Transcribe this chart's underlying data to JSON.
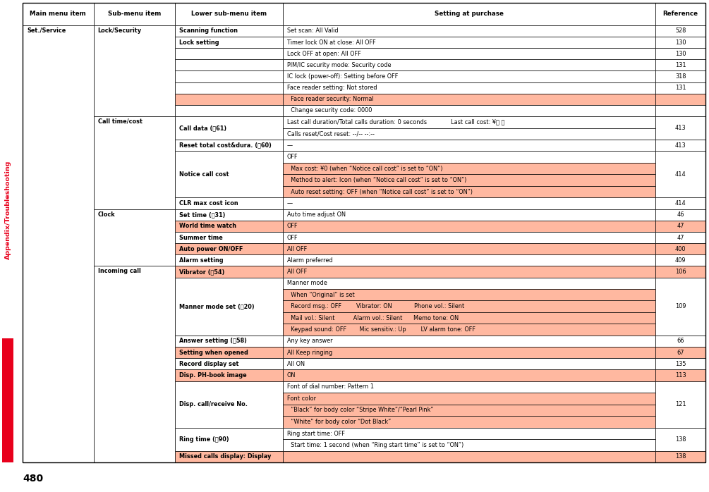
{
  "title_page": "480",
  "sidebar_text": "Appendix/Troubleshooting",
  "sidebar_color": "#e8001c",
  "col_headers": [
    "Main menu item",
    "Sub-menu item",
    "Lower sub-menu item",
    "Setting at purchase",
    "Reference"
  ],
  "pink_color": "#ffb8a0",
  "rows": [
    {
      "main": "Set./Service",
      "sub": "Lock/Security",
      "lower": "Scanning function",
      "setting": "Set scan: All Valid",
      "ref": "528",
      "bg": "white",
      "bl": true,
      "lines": 1
    },
    {
      "main": "",
      "sub": "",
      "lower": "Lock setting",
      "setting": "Timer lock ON at close: All OFF",
      "ref": "130",
      "bg": "white",
      "bl": true,
      "lines": 1
    },
    {
      "main": "",
      "sub": "",
      "lower": "",
      "setting": "Lock OFF at open: All OFF",
      "ref": "130",
      "bg": "white",
      "bl": false,
      "lines": 1
    },
    {
      "main": "",
      "sub": "",
      "lower": "",
      "setting": "PIM/IC security mode: Security code",
      "ref": "131",
      "bg": "white",
      "bl": false,
      "lines": 1
    },
    {
      "main": "",
      "sub": "",
      "lower": "",
      "setting": "IC lock (power-off): Setting before OFF",
      "ref": "318",
      "bg": "white",
      "bl": false,
      "lines": 1
    },
    {
      "main": "",
      "sub": "",
      "lower": "",
      "setting": "Face reader setting: Not stored",
      "ref": "131",
      "bg": "white",
      "bl": false,
      "lines": 1
    },
    {
      "main": "",
      "sub": "",
      "lower": "",
      "setting": "  Face reader security: Normal",
      "ref": "",
      "bg": "pink",
      "bl": false,
      "lines": 1
    },
    {
      "main": "",
      "sub": "",
      "lower": "",
      "setting": "  Change security code: 0000",
      "ref": "",
      "bg": "white",
      "bl": false,
      "lines": 1
    },
    {
      "main": "",
      "sub": "Call time/cost",
      "lower": "Call data (Ⓐ61)",
      "setting": "Last call duration/Total calls duration: 0 seconds             Last call cost: ¥＊ ＊\nCalls reset/Cost reset: --/-- --:--",
      "ref": "413",
      "bg": "white",
      "bl": true,
      "lines": 2
    },
    {
      "main": "",
      "sub": "",
      "lower": "Reset total cost&dura. (Ⓐ60)",
      "setting": "—",
      "ref": "413",
      "bg": "white",
      "bl": true,
      "lines": 1
    },
    {
      "main": "",
      "sub": "",
      "lower": "Notice call cost",
      "setting": "OFF\n  Max cost: ¥0 (when “Notice call cost” is set to “ON”)\n  Method to alert: Icon (when “Notice call cost” is set to “ON”)\n  Auto reset setting: OFF (when “Notice call cost” is set to “ON”)",
      "ref": "414",
      "bg": "white",
      "bl": true,
      "lines": 4,
      "sub_lines_pink": true
    },
    {
      "main": "",
      "sub": "",
      "lower": "CLR max cost icon",
      "setting": "—",
      "ref": "414",
      "bg": "white",
      "bl": true,
      "lines": 1
    },
    {
      "main": "",
      "sub": "Clock",
      "lower": "Set time (Ⓐ31)",
      "setting": "Auto time adjust ON",
      "ref": "46",
      "bg": "white",
      "bl": true,
      "lines": 1
    },
    {
      "main": "",
      "sub": "",
      "lower": "World time watch",
      "setting": "OFF",
      "ref": "47",
      "bg": "pink",
      "bl": true,
      "lines": 1
    },
    {
      "main": "",
      "sub": "",
      "lower": "Summer time",
      "setting": "OFF",
      "ref": "47",
      "bg": "white",
      "bl": true,
      "lines": 1
    },
    {
      "main": "",
      "sub": "",
      "lower": "Auto power ON/OFF",
      "setting": "All OFF",
      "ref": "400",
      "bg": "pink",
      "bl": true,
      "lines": 1
    },
    {
      "main": "",
      "sub": "",
      "lower": "Alarm setting",
      "setting": "Alarm preferred",
      "ref": "409",
      "bg": "white",
      "bl": true,
      "lines": 1
    },
    {
      "main": "",
      "sub": "Incoming call",
      "lower": "Vibrator (Ⓐ54)",
      "setting": "All OFF",
      "ref": "106",
      "bg": "pink",
      "bl": true,
      "lines": 1
    },
    {
      "main": "",
      "sub": "",
      "lower": "Manner mode set (Ⓐ20)",
      "setting": "Manner mode\n  When “Original” is set\n  Record msg.: OFF        Vibrator: ON            Phone vol.: Silent\n  Mail vol.: Silent          Alarm vol.: Silent      Memo tone: ON\n  Keypad sound: OFF       Mic sensitiv.: Up        LV alarm tone: OFF",
      "ref": "109",
      "bg": "white",
      "bl": true,
      "lines": 5,
      "sub_lines_pink": true
    },
    {
      "main": "",
      "sub": "",
      "lower": "Answer setting (Ⓐ58)",
      "setting": "Any key answer",
      "ref": "66",
      "bg": "white",
      "bl": true,
      "lines": 1
    },
    {
      "main": "",
      "sub": "",
      "lower": "Setting when opened",
      "setting": "All Keep ringing",
      "ref": "67",
      "bg": "pink",
      "bl": true,
      "lines": 1
    },
    {
      "main": "",
      "sub": "",
      "lower": "Record display set",
      "setting": "All ON",
      "ref": "135",
      "bg": "white",
      "bl": true,
      "lines": 1
    },
    {
      "main": "",
      "sub": "",
      "lower": "Disp. PH-book image",
      "setting": "ON",
      "ref": "113",
      "bg": "pink",
      "bl": true,
      "lines": 1
    },
    {
      "main": "",
      "sub": "",
      "lower": "Disp. call/receive No.",
      "setting": "Font of dial number: Pattern 1\nFont color\n  “Black” for body color “Stripe White”/“Pearl Pink”\n  “White” for body color “Dot Black”",
      "ref": "121",
      "bg": "white",
      "bl": true,
      "lines": 4,
      "sub_lines_pink": true
    },
    {
      "main": "",
      "sub": "",
      "lower": "Ring time (Ⓐ90)",
      "setting": "Ring start time: OFF\n  Start time: 1 second (when “Ring start time” is set to “ON”)",
      "ref": "138",
      "bg": "white",
      "bl": true,
      "lines": 2
    },
    {
      "main": "",
      "sub": "",
      "lower": "Missed calls display: Display",
      "setting": "",
      "ref": "138",
      "bg": "pink",
      "bl": true,
      "lines": 1
    }
  ]
}
